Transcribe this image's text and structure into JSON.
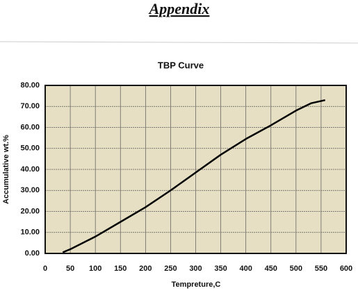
{
  "header": {
    "title": "Appendix"
  },
  "chart_data": {
    "type": "line",
    "title": "TBP Curve",
    "x_label": "Tempreture,C",
    "y_label": "Accumulative wt.%",
    "series": [
      {
        "color": "#000000",
        "x": [
          35,
          50,
          100,
          150,
          200,
          250,
          300,
          350,
          400,
          450,
          500,
          530,
          558
        ],
        "values": [
          0.5,
          2,
          8,
          15,
          22,
          30,
          38.5,
          47,
          54.5,
          61,
          68,
          71.5,
          73
        ]
      }
    ],
    "xlim": [
      0,
      600
    ],
    "xticks": [
      0,
      50,
      100,
      150,
      200,
      250,
      300,
      350,
      400,
      450,
      500,
      550,
      600
    ],
    "ylim": [
      0,
      80
    ],
    "yticks": [
      {
        "value": 0,
        "label": "0.00"
      },
      {
        "value": 10,
        "label": "10.00"
      },
      {
        "value": 20,
        "label": "20.00"
      },
      {
        "value": 30,
        "label": "30.00"
      },
      {
        "value": 40,
        "label": "40.00"
      },
      {
        "value": 50,
        "label": "50.00"
      },
      {
        "value": 60,
        "label": "60.00"
      },
      {
        "value": 70,
        "label": "70.00"
      },
      {
        "value": 80,
        "label": "80.00"
      }
    ],
    "grid": true,
    "plot_background": "#e6dfc3"
  }
}
